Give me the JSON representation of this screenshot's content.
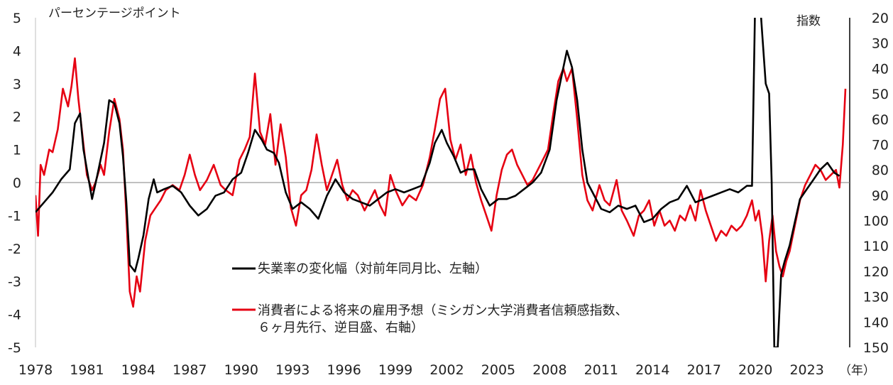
{
  "chart_data": {
    "type": "line",
    "title": "",
    "left_axis": {
      "label": "パーセンテージポイント",
      "ylim": [
        -5,
        5
      ],
      "ticks": [
        "5",
        "4",
        "3",
        "2",
        "1",
        "0",
        "-1",
        "-2",
        "-3",
        "-4",
        "-5"
      ]
    },
    "right_axis": {
      "label": "指数",
      "ylim": [
        20,
        150
      ],
      "inverted": true,
      "ticks": [
        "20",
        "30",
        "40",
        "50",
        "60",
        "70",
        "80",
        "90",
        "100",
        "110",
        "120",
        "130",
        "140",
        "150"
      ]
    },
    "x_axis": {
      "unit_label": "（年）",
      "range": [
        1978,
        2025.5
      ],
      "tick_labels": [
        "1978",
        "1981",
        "1984",
        "1987",
        "1990",
        "1993",
        "1996",
        "1999",
        "2002",
        "2005",
        "2008",
        "2011",
        "2014",
        "2017",
        "2020",
        "2023"
      ]
    },
    "grid": false,
    "zero_line": true,
    "legend_position": "center-left",
    "series": [
      {
        "name": "失業率の変化幅（対前年同月比、左軸）",
        "axis": "left",
        "color": "#000000",
        "points": [
          [
            1978.0,
            -0.9
          ],
          [
            1978.5,
            -0.6
          ],
          [
            1979.0,
            -0.3
          ],
          [
            1979.5,
            0.1
          ],
          [
            1980.0,
            0.4
          ],
          [
            1980.3,
            1.8
          ],
          [
            1980.6,
            2.1
          ],
          [
            1980.8,
            1.0
          ],
          [
            1981.0,
            0.4
          ],
          [
            1981.3,
            -0.5
          ],
          [
            1981.6,
            0.2
          ],
          [
            1982.0,
            1.2
          ],
          [
            1982.3,
            2.5
          ],
          [
            1982.6,
            2.4
          ],
          [
            1982.9,
            1.8
          ],
          [
            1983.1,
            0.8
          ],
          [
            1983.3,
            -0.6
          ],
          [
            1983.5,
            -2.5
          ],
          [
            1983.8,
            -2.7
          ],
          [
            1984.0,
            -2.3
          ],
          [
            1984.3,
            -1.6
          ],
          [
            1984.6,
            -0.5
          ],
          [
            1984.9,
            0.1
          ],
          [
            1985.1,
            -0.3
          ],
          [
            1985.5,
            -0.2
          ],
          [
            1986.0,
            -0.1
          ],
          [
            1986.5,
            -0.3
          ],
          [
            1987.0,
            -0.7
          ],
          [
            1987.5,
            -1.0
          ],
          [
            1988.0,
            -0.8
          ],
          [
            1988.5,
            -0.4
          ],
          [
            1989.0,
            -0.3
          ],
          [
            1989.5,
            0.1
          ],
          [
            1990.0,
            0.3
          ],
          [
            1990.4,
            0.9
          ],
          [
            1990.8,
            1.6
          ],
          [
            1991.2,
            1.3
          ],
          [
            1991.5,
            1.0
          ],
          [
            1991.9,
            0.9
          ],
          [
            1992.2,
            0.6
          ],
          [
            1992.6,
            -0.3
          ],
          [
            1993.0,
            -0.8
          ],
          [
            1993.5,
            -0.6
          ],
          [
            1994.0,
            -0.8
          ],
          [
            1994.5,
            -1.1
          ],
          [
            1995.0,
            -0.4
          ],
          [
            1995.5,
            0.1
          ],
          [
            1996.0,
            -0.3
          ],
          [
            1996.5,
            -0.5
          ],
          [
            1997.0,
            -0.6
          ],
          [
            1997.5,
            -0.7
          ],
          [
            1998.0,
            -0.5
          ],
          [
            1998.5,
            -0.3
          ],
          [
            1999.0,
            -0.2
          ],
          [
            1999.5,
            -0.3
          ],
          [
            2000.0,
            -0.2
          ],
          [
            2000.5,
            -0.1
          ],
          [
            2001.0,
            0.6
          ],
          [
            2001.3,
            1.2
          ],
          [
            2001.7,
            1.6
          ],
          [
            2002.0,
            1.2
          ],
          [
            2002.4,
            0.8
          ],
          [
            2002.8,
            0.3
          ],
          [
            2003.2,
            0.4
          ],
          [
            2003.6,
            0.4
          ],
          [
            2004.0,
            -0.2
          ],
          [
            2004.5,
            -0.7
          ],
          [
            2005.0,
            -0.5
          ],
          [
            2005.5,
            -0.5
          ],
          [
            2006.0,
            -0.4
          ],
          [
            2006.5,
            -0.2
          ],
          [
            2007.0,
            0.0
          ],
          [
            2007.5,
            0.3
          ],
          [
            2008.0,
            1.0
          ],
          [
            2008.4,
            2.5
          ],
          [
            2008.8,
            3.5
          ],
          [
            2009.0,
            4.0
          ],
          [
            2009.3,
            3.5
          ],
          [
            2009.6,
            2.5
          ],
          [
            2009.9,
            1.0
          ],
          [
            2010.2,
            0.0
          ],
          [
            2010.5,
            -0.3
          ],
          [
            2011.0,
            -0.8
          ],
          [
            2011.5,
            -0.9
          ],
          [
            2012.0,
            -0.7
          ],
          [
            2012.5,
            -0.8
          ],
          [
            2013.0,
            -0.7
          ],
          [
            2013.5,
            -1.2
          ],
          [
            2014.0,
            -1.1
          ],
          [
            2014.5,
            -0.8
          ],
          [
            2015.0,
            -0.6
          ],
          [
            2015.5,
            -0.5
          ],
          [
            2016.0,
            -0.1
          ],
          [
            2016.5,
            -0.6
          ],
          [
            2017.0,
            -0.5
          ],
          [
            2017.5,
            -0.4
          ],
          [
            2018.0,
            -0.3
          ],
          [
            2018.5,
            -0.2
          ],
          [
            2019.0,
            -0.3
          ],
          [
            2019.5,
            -0.1
          ],
          [
            2019.8,
            -0.1
          ],
          [
            2020.0,
            6.0
          ],
          [
            2020.2,
            6.0
          ],
          [
            2020.4,
            4.5
          ],
          [
            2020.6,
            3.0
          ],
          [
            2020.8,
            2.7
          ],
          [
            2020.95,
            0.0
          ],
          [
            2021.1,
            -5.0
          ],
          [
            2021.3,
            -5.0
          ],
          [
            2021.5,
            -2.8
          ],
          [
            2021.7,
            -2.4
          ],
          [
            2022.0,
            -1.9
          ],
          [
            2022.3,
            -1.2
          ],
          [
            2022.6,
            -0.5
          ],
          [
            2023.0,
            -0.2
          ],
          [
            2023.4,
            0.1
          ],
          [
            2023.8,
            0.4
          ],
          [
            2024.2,
            0.6
          ],
          [
            2024.6,
            0.3
          ],
          [
            2024.9,
            0.2
          ]
        ]
      },
      {
        "name": "消費者による将来の雇用予想（ミシガン大学消費者信頼感指数、６ヶ月先行、逆目盛、右軸）",
        "axis": "right",
        "color": "#e60012",
        "points": [
          [
            1978.0,
            90
          ],
          [
            1978.15,
            106
          ],
          [
            1978.3,
            78
          ],
          [
            1978.5,
            82
          ],
          [
            1978.8,
            72
          ],
          [
            1979.0,
            73
          ],
          [
            1979.3,
            64
          ],
          [
            1979.6,
            48
          ],
          [
            1979.9,
            55
          ],
          [
            1980.1,
            47
          ],
          [
            1980.3,
            36
          ],
          [
            1980.5,
            52
          ],
          [
            1980.8,
            70
          ],
          [
            1981.0,
            82
          ],
          [
            1981.3,
            88
          ],
          [
            1981.5,
            85
          ],
          [
            1981.8,
            78
          ],
          [
            1982.0,
            82
          ],
          [
            1982.3,
            65
          ],
          [
            1982.6,
            52
          ],
          [
            1982.9,
            60
          ],
          [
            1983.1,
            72
          ],
          [
            1983.3,
            98
          ],
          [
            1983.5,
            128
          ],
          [
            1983.7,
            134
          ],
          [
            1983.9,
            122
          ],
          [
            1984.1,
            128
          ],
          [
            1984.4,
            108
          ],
          [
            1984.7,
            98
          ],
          [
            1985.0,
            95
          ],
          [
            1985.3,
            92
          ],
          [
            1985.6,
            88
          ],
          [
            1986.0,
            86
          ],
          [
            1986.4,
            88
          ],
          [
            1986.7,
            82
          ],
          [
            1987.0,
            74
          ],
          [
            1987.3,
            82
          ],
          [
            1987.6,
            88
          ],
          [
            1988.0,
            84
          ],
          [
            1988.4,
            78
          ],
          [
            1988.8,
            86
          ],
          [
            1989.1,
            88
          ],
          [
            1989.5,
            90
          ],
          [
            1989.9,
            76
          ],
          [
            1990.2,
            72
          ],
          [
            1990.5,
            67
          ],
          [
            1990.8,
            42
          ],
          [
            1991.1,
            65
          ],
          [
            1991.4,
            70
          ],
          [
            1991.7,
            58
          ],
          [
            1992.0,
            78
          ],
          [
            1992.3,
            62
          ],
          [
            1992.6,
            75
          ],
          [
            1992.9,
            95
          ],
          [
            1993.2,
            102
          ],
          [
            1993.5,
            90
          ],
          [
            1993.8,
            88
          ],
          [
            1994.1,
            80
          ],
          [
            1994.4,
            66
          ],
          [
            1994.7,
            78
          ],
          [
            1995.0,
            88
          ],
          [
            1995.3,
            82
          ],
          [
            1995.6,
            76
          ],
          [
            1995.9,
            86
          ],
          [
            1996.2,
            92
          ],
          [
            1996.5,
            88
          ],
          [
            1996.8,
            90
          ],
          [
            1997.2,
            96
          ],
          [
            1997.5,
            92
          ],
          [
            1997.8,
            88
          ],
          [
            1998.1,
            94
          ],
          [
            1998.4,
            98
          ],
          [
            1998.7,
            82
          ],
          [
            1999.0,
            88
          ],
          [
            1999.4,
            94
          ],
          [
            1999.8,
            90
          ],
          [
            2000.2,
            92
          ],
          [
            2000.6,
            86
          ],
          [
            2001.0,
            75
          ],
          [
            2001.3,
            64
          ],
          [
            2001.6,
            52
          ],
          [
            2001.9,
            48
          ],
          [
            2002.2,
            68
          ],
          [
            2002.5,
            76
          ],
          [
            2002.8,
            70
          ],
          [
            2003.1,
            82
          ],
          [
            2003.4,
            74
          ],
          [
            2003.7,
            85
          ],
          [
            2004.0,
            92
          ],
          [
            2004.3,
            98
          ],
          [
            2004.6,
            104
          ],
          [
            2004.9,
            90
          ],
          [
            2005.2,
            80
          ],
          [
            2005.5,
            74
          ],
          [
            2005.8,
            72
          ],
          [
            2006.1,
            78
          ],
          [
            2006.4,
            82
          ],
          [
            2006.7,
            86
          ],
          [
            2007.0,
            84
          ],
          [
            2007.3,
            80
          ],
          [
            2007.6,
            76
          ],
          [
            2007.9,
            72
          ],
          [
            2008.2,
            58
          ],
          [
            2008.5,
            45
          ],
          [
            2008.8,
            40
          ],
          [
            2009.0,
            45
          ],
          [
            2009.3,
            40
          ],
          [
            2009.6,
            60
          ],
          [
            2009.9,
            82
          ],
          [
            2010.2,
            92
          ],
          [
            2010.5,
            96
          ],
          [
            2010.9,
            86
          ],
          [
            2011.2,
            92
          ],
          [
            2011.5,
            94
          ],
          [
            2011.9,
            84
          ],
          [
            2012.2,
            96
          ],
          [
            2012.5,
            100
          ],
          [
            2012.9,
            106
          ],
          [
            2013.2,
            98
          ],
          [
            2013.5,
            96
          ],
          [
            2013.8,
            92
          ],
          [
            2014.1,
            102
          ],
          [
            2014.4,
            96
          ],
          [
            2014.7,
            102
          ],
          [
            2015.0,
            100
          ],
          [
            2015.3,
            104
          ],
          [
            2015.6,
            98
          ],
          [
            2015.9,
            100
          ],
          [
            2016.2,
            94
          ],
          [
            2016.5,
            100
          ],
          [
            2016.8,
            88
          ],
          [
            2017.1,
            96
          ],
          [
            2017.4,
            102
          ],
          [
            2017.7,
            108
          ],
          [
            2018.0,
            104
          ],
          [
            2018.3,
            106
          ],
          [
            2018.6,
            102
          ],
          [
            2018.9,
            104
          ],
          [
            2019.2,
            102
          ],
          [
            2019.5,
            98
          ],
          [
            2019.8,
            92
          ],
          [
            2020.0,
            100
          ],
          [
            2020.2,
            96
          ],
          [
            2020.4,
            106
          ],
          [
            2020.6,
            124
          ],
          [
            2020.8,
            108
          ],
          [
            2021.0,
            98
          ],
          [
            2021.2,
            112
          ],
          [
            2021.4,
            118
          ],
          [
            2021.6,
            122
          ],
          [
            2021.8,
            116
          ],
          [
            2022.0,
            112
          ],
          [
            2022.3,
            102
          ],
          [
            2022.6,
            92
          ],
          [
            2022.9,
            86
          ],
          [
            2023.2,
            82
          ],
          [
            2023.5,
            78
          ],
          [
            2023.8,
            80
          ],
          [
            2024.1,
            84
          ],
          [
            2024.4,
            82
          ],
          [
            2024.7,
            80
          ],
          [
            2024.9,
            87
          ],
          [
            2025.1,
            70
          ],
          [
            2025.25,
            48
          ]
        ]
      }
    ]
  }
}
